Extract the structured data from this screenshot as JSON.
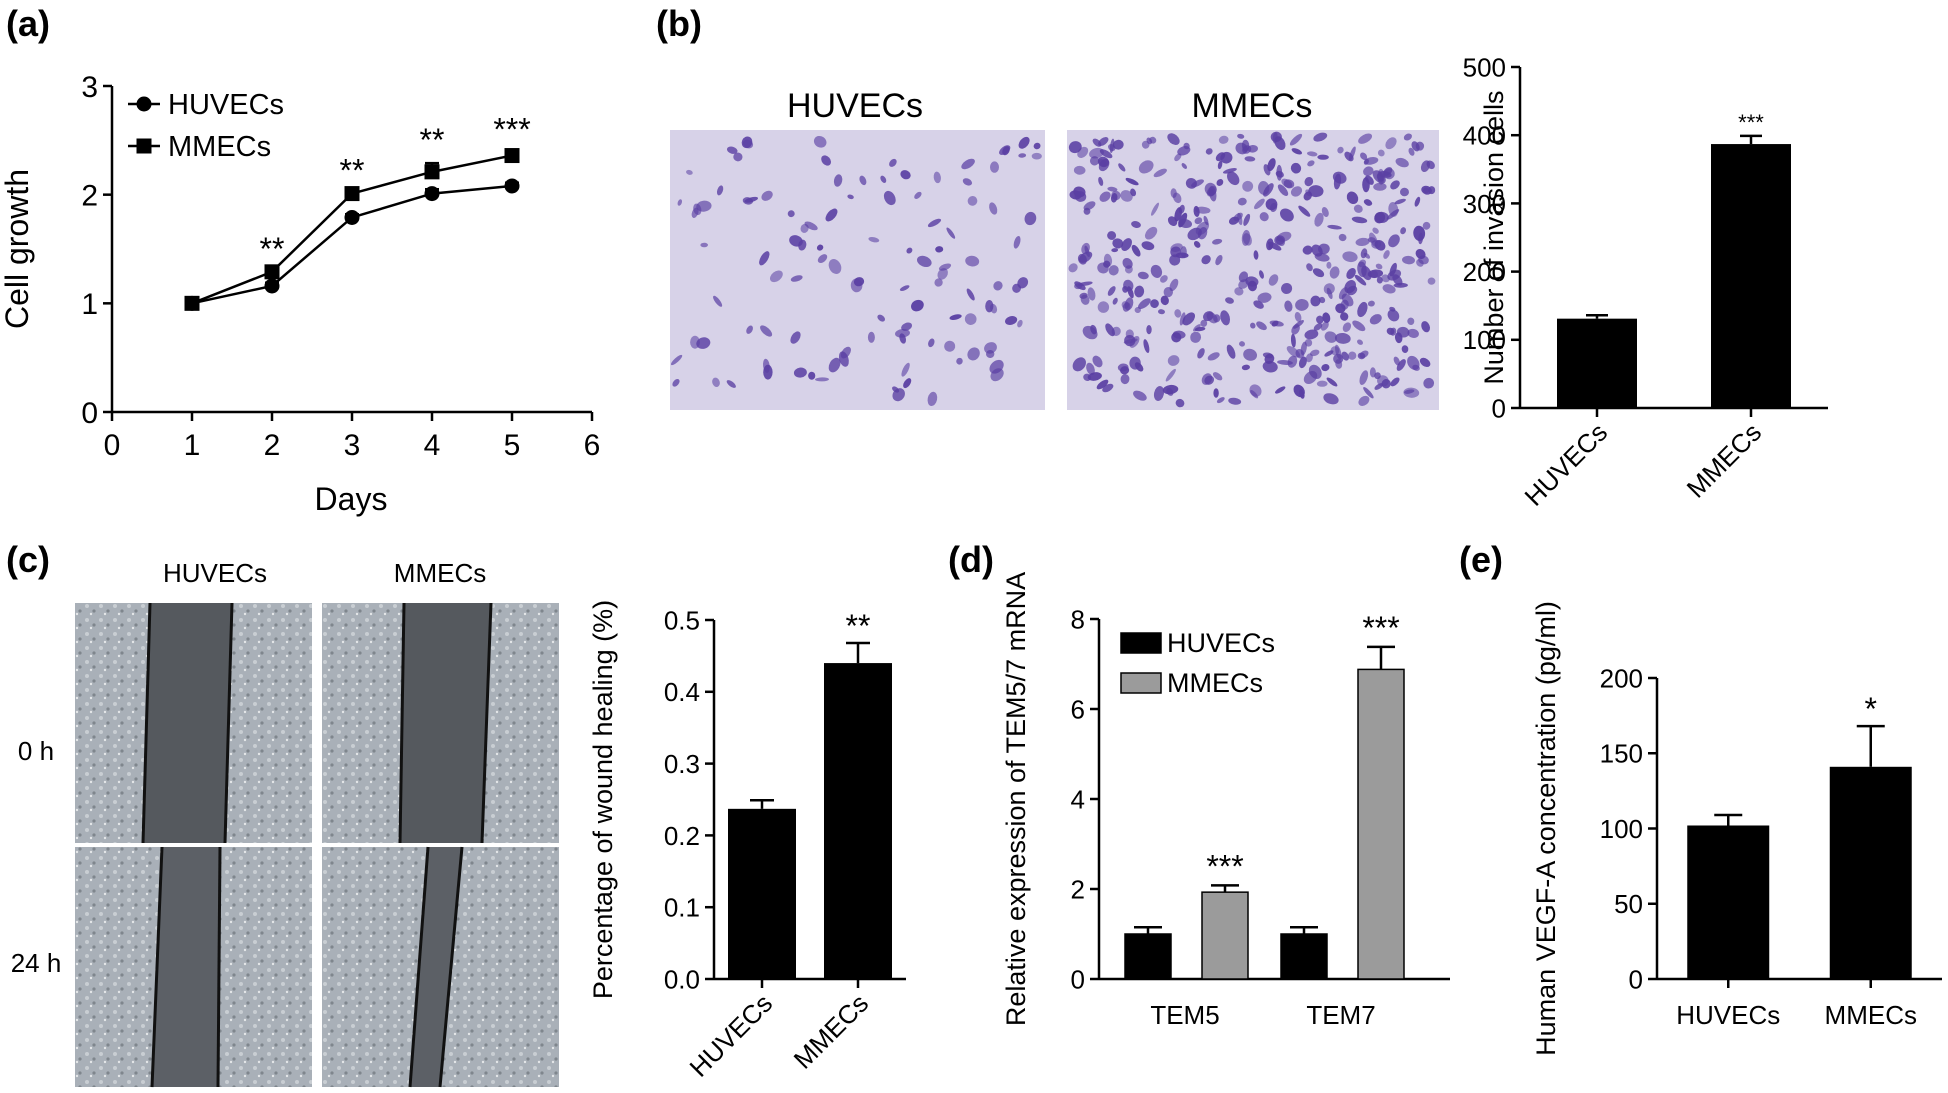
{
  "panels": {
    "a": "(a)",
    "b": "(b)",
    "c": "(c)",
    "d": "(d)",
    "e": "(e)"
  },
  "micrographs": {
    "b_labels": [
      "HUVECs",
      "MMECs"
    ],
    "c_columns": [
      "HUVECs",
      "MMECs"
    ],
    "c_rows": [
      "0 h",
      "24 h"
    ]
  },
  "colors": {
    "black": "#000000",
    "grey": "#9b9b9b",
    "stain_bg": "#d7d2e8",
    "stain_cell": "#5a3fa3",
    "phase_bg": "#a9b0b8",
    "phase_gap": "#55595e"
  },
  "chart_data": [
    {
      "panel": "a",
      "type": "line",
      "xlabel": "Days",
      "ylabel": "Cell growth",
      "xlim": [
        0,
        6
      ],
      "ylim": [
        0,
        3
      ],
      "xticks": [
        0,
        1,
        2,
        3,
        4,
        5,
        6
      ],
      "yticks": [
        0,
        1,
        2,
        3
      ],
      "x": [
        1,
        2,
        3,
        4,
        5
      ],
      "series": [
        {
          "name": "HUVECs",
          "marker": "circle",
          "values": [
            1.0,
            1.16,
            1.79,
            2.01,
            2.08
          ],
          "errors": [
            0.02,
            0.03,
            0.03,
            0.04,
            0.03
          ]
        },
        {
          "name": "MMECs",
          "marker": "square",
          "values": [
            1.0,
            1.29,
            2.01,
            2.21,
            2.36
          ],
          "errors": [
            0.02,
            0.05,
            0.03,
            0.08,
            0.03
          ]
        }
      ],
      "annotations": [
        {
          "x": 2,
          "text": "**"
        },
        {
          "x": 3,
          "text": "**"
        },
        {
          "x": 4,
          "text": "**"
        },
        {
          "x": 5,
          "text": "***"
        }
      ],
      "legend": "top-left"
    },
    {
      "panel": "b",
      "type": "bar",
      "categories": [
        "HUVECs",
        "MMECs"
      ],
      "values": [
        131,
        387
      ],
      "errors": [
        5,
        12
      ],
      "ylabel": "Number of invasion cells",
      "ylim": [
        0,
        500
      ],
      "yticks": [
        0,
        100,
        200,
        300,
        400,
        500
      ],
      "annotations": [
        {
          "category": "MMECs",
          "text": "***"
        }
      ]
    },
    {
      "panel": "c",
      "type": "bar",
      "categories": [
        "HUVECs",
        "MMECs"
      ],
      "values": [
        0.237,
        0.44
      ],
      "errors": [
        0.012,
        0.028
      ],
      "ylabel": "Percentage of wound healing (%)",
      "ylim": [
        0,
        0.5
      ],
      "yticks": [
        0.0,
        0.1,
        0.2,
        0.3,
        0.4,
        0.5
      ],
      "annotations": [
        {
          "category": "MMECs",
          "text": "**"
        }
      ]
    },
    {
      "panel": "d",
      "type": "bar",
      "categories": [
        "TEM5",
        "TEM7"
      ],
      "series": [
        {
          "name": "HUVECs",
          "values": [
            1.0,
            1.0
          ],
          "errors": [
            0.15,
            0.15
          ]
        },
        {
          "name": "MMECs",
          "values": [
            1.93,
            6.88
          ],
          "errors": [
            0.15,
            0.5
          ]
        }
      ],
      "ylabel": "Relative expression of TEM5/7 mRNA",
      "ylim": [
        0,
        8
      ],
      "yticks": [
        0,
        2,
        4,
        6,
        8
      ],
      "annotations": [
        {
          "category": "TEM5",
          "series": "MMECs",
          "text": "***"
        },
        {
          "category": "TEM7",
          "series": "MMECs",
          "text": "***"
        }
      ],
      "legend": "top-left"
    },
    {
      "panel": "e",
      "type": "bar",
      "categories": [
        "HUVECs",
        "MMECs"
      ],
      "values": [
        102,
        141
      ],
      "errors": [
        7,
        27
      ],
      "ylabel": "Human VEGF-A concentration (pg/ml)",
      "ylim": [
        0,
        200
      ],
      "yticks": [
        0,
        50,
        100,
        150,
        200
      ],
      "annotations": [
        {
          "category": "MMECs",
          "text": "*"
        }
      ]
    }
  ]
}
